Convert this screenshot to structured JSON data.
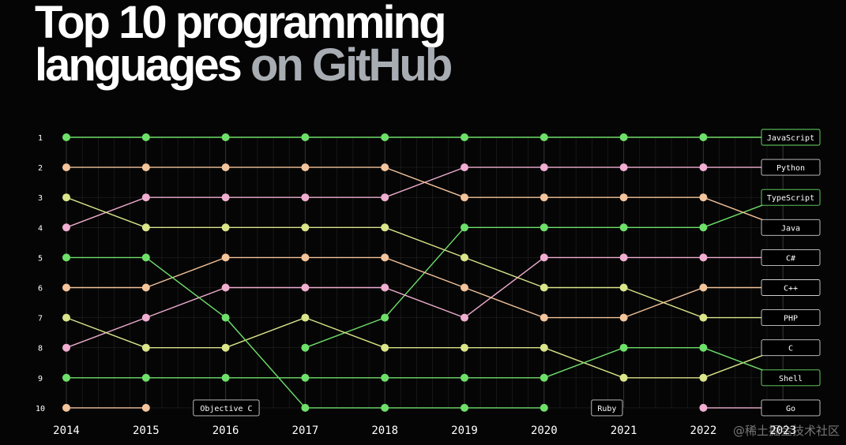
{
  "header": {
    "title_line1": "Top 10 programming",
    "title_line2_white": "languages",
    "title_line2_grey": "on GitHub"
  },
  "watermark": "@稀土掘金技术社区",
  "colors": {
    "green": "#6ee06a",
    "peach": "#f4c49b",
    "pink": "#f0aed0",
    "lime": "#dbe58a",
    "background": "#050505",
    "grid": "#3a3a3a"
  },
  "chart_data": {
    "type": "line",
    "title": "",
    "x": [
      "2014",
      "2015",
      "2016",
      "2017",
      "2018",
      "2019",
      "2020",
      "2021",
      "2022",
      "2023"
    ],
    "ranks": [
      1,
      2,
      3,
      4,
      5,
      6,
      7,
      8,
      9,
      10
    ],
    "y_axis": "rank",
    "y_inverted": true,
    "ylim": [
      1,
      10
    ],
    "grid": true,
    "series": [
      {
        "name": "JavaScript",
        "color": "green",
        "values": [
          1,
          1,
          1,
          1,
          1,
          1,
          1,
          1,
          1,
          1
        ],
        "end_rank": 1
      },
      {
        "name": "Python",
        "color": "pink",
        "values": [
          4,
          3,
          3,
          3,
          3,
          2,
          2,
          2,
          2,
          2
        ],
        "end_rank": 2
      },
      {
        "name": "TypeScript",
        "color": "green",
        "values": [
          null,
          null,
          null,
          8,
          7,
          4,
          4,
          4,
          4,
          3
        ],
        "end_rank": 3
      },
      {
        "name": "Java",
        "color": "peach",
        "values": [
          2,
          2,
          2,
          2,
          2,
          3,
          3,
          3,
          3,
          4
        ],
        "end_rank": 4
      },
      {
        "name": "C#",
        "color": "pink",
        "values": [
          8,
          7,
          6,
          6,
          6,
          7,
          5,
          5,
          5,
          5
        ],
        "end_rank": 5
      },
      {
        "name": "C++",
        "color": "peach",
        "values": [
          6,
          6,
          5,
          5,
          5,
          6,
          7,
          7,
          6,
          6
        ],
        "end_rank": 6
      },
      {
        "name": "PHP",
        "color": "lime",
        "values": [
          3,
          4,
          4,
          4,
          4,
          5,
          6,
          6,
          7,
          7
        ],
        "end_rank": 7
      },
      {
        "name": "C",
        "color": "lime",
        "values": [
          7,
          8,
          8,
          7,
          8,
          8,
          8,
          9,
          9,
          8
        ],
        "end_rank": 8
      },
      {
        "name": "Shell",
        "color": "green",
        "values": [
          9,
          9,
          9,
          9,
          9,
          9,
          9,
          8,
          8,
          9
        ],
        "end_rank": 9
      },
      {
        "name": "Go",
        "color": "pink",
        "values": [
          null,
          null,
          null,
          null,
          null,
          null,
          null,
          null,
          10,
          10
        ],
        "end_rank": 10
      },
      {
        "name": "Objective C",
        "color": "peach",
        "values": [
          10,
          10,
          null,
          null,
          null,
          null,
          null,
          null,
          null,
          null
        ],
        "label_after": "2015"
      },
      {
        "name": "Ruby",
        "color": "green",
        "values": [
          5,
          5,
          7,
          10,
          10,
          10,
          10,
          null,
          null,
          null
        ],
        "label_after": "2020"
      }
    ]
  }
}
